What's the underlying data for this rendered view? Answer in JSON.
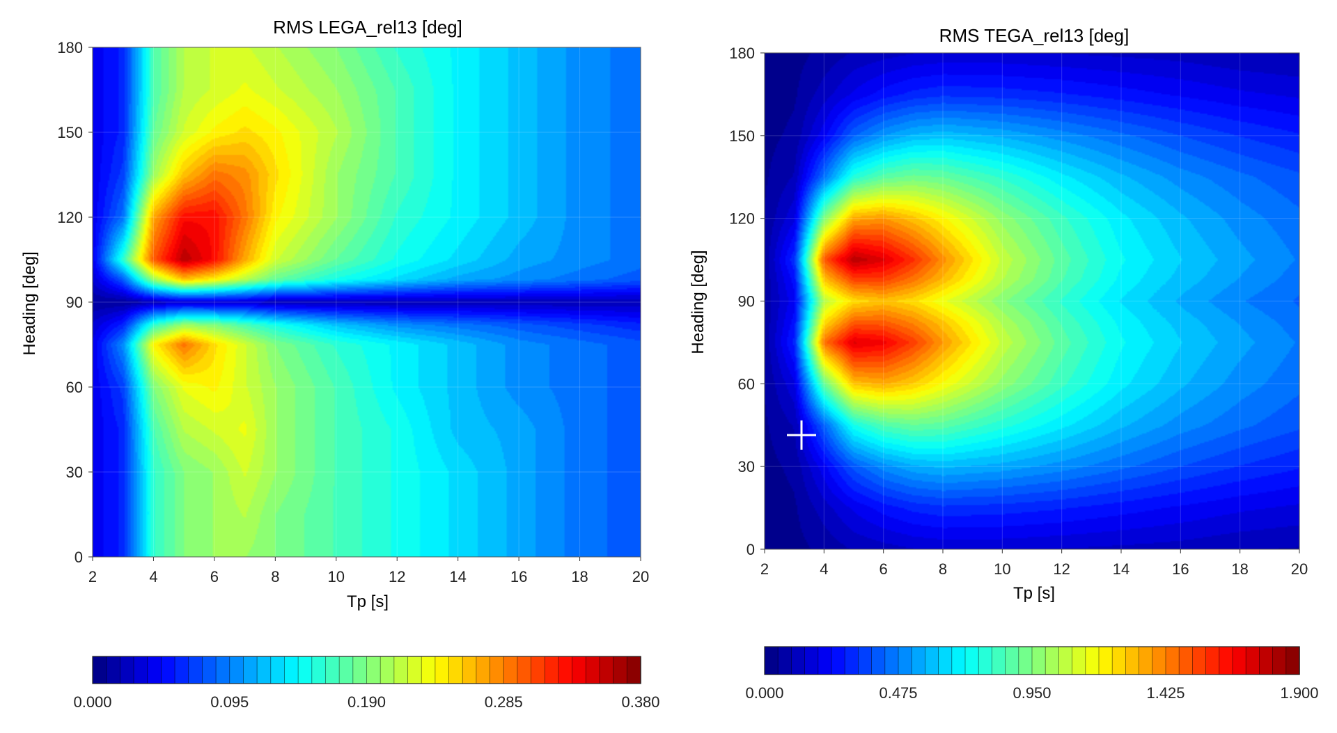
{
  "chart_data": [
    {
      "type": "heatmap",
      "title": "RMS LEGA_rel13 [deg]",
      "xlabel": "Tp [s]",
      "ylabel": "Heading [deg]",
      "xlim": [
        2,
        20
      ],
      "ylim": [
        0,
        180
      ],
      "xticks": [
        2,
        4,
        6,
        8,
        10,
        12,
        14,
        16,
        18,
        20
      ],
      "yticks": [
        0,
        30,
        60,
        90,
        120,
        150,
        180
      ],
      "colorbar": {
        "min": 0.0,
        "max": 0.38,
        "levels": 40,
        "ticks": [
          "0.000",
          "0.095",
          "0.190",
          "0.285",
          "0.380"
        ]
      },
      "colormap": "jet",
      "x": [
        2,
        3,
        4,
        5,
        6,
        7,
        8,
        10,
        12,
        14,
        16,
        18,
        20
      ],
      "y": [
        0,
        15,
        30,
        45,
        60,
        75,
        82,
        90,
        98,
        105,
        120,
        135,
        150,
        165,
        180
      ],
      "z": [
        [
          0.04,
          0.06,
          0.16,
          0.19,
          0.2,
          0.2,
          0.19,
          0.17,
          0.15,
          0.13,
          0.11,
          0.09,
          0.08
        ],
        [
          0.04,
          0.06,
          0.16,
          0.19,
          0.2,
          0.21,
          0.19,
          0.17,
          0.15,
          0.13,
          0.11,
          0.09,
          0.08
        ],
        [
          0.04,
          0.06,
          0.16,
          0.19,
          0.2,
          0.22,
          0.2,
          0.17,
          0.15,
          0.13,
          0.11,
          0.09,
          0.08
        ],
        [
          0.04,
          0.06,
          0.17,
          0.21,
          0.22,
          0.23,
          0.2,
          0.17,
          0.15,
          0.12,
          0.11,
          0.09,
          0.08
        ],
        [
          0.04,
          0.07,
          0.19,
          0.23,
          0.24,
          0.22,
          0.2,
          0.17,
          0.14,
          0.12,
          0.1,
          0.09,
          0.08
        ],
        [
          0.04,
          0.1,
          0.24,
          0.29,
          0.25,
          0.22,
          0.19,
          0.16,
          0.14,
          0.12,
          0.1,
          0.09,
          0.08
        ],
        [
          0.03,
          0.06,
          0.16,
          0.2,
          0.19,
          0.17,
          0.15,
          0.12,
          0.1,
          0.09,
          0.08,
          0.07,
          0.06
        ],
        [
          0.01,
          0.01,
          0.02,
          0.03,
          0.03,
          0.03,
          0.02,
          0.02,
          0.02,
          0.02,
          0.02,
          0.02,
          0.02
        ],
        [
          0.03,
          0.08,
          0.2,
          0.26,
          0.24,
          0.21,
          0.18,
          0.15,
          0.13,
          0.11,
          0.1,
          0.09,
          0.08
        ],
        [
          0.04,
          0.16,
          0.3,
          0.36,
          0.33,
          0.27,
          0.22,
          0.18,
          0.15,
          0.13,
          0.11,
          0.1,
          0.09
        ],
        [
          0.04,
          0.09,
          0.27,
          0.33,
          0.33,
          0.29,
          0.24,
          0.2,
          0.16,
          0.14,
          0.12,
          0.1,
          0.09
        ],
        [
          0.04,
          0.07,
          0.2,
          0.26,
          0.29,
          0.28,
          0.25,
          0.2,
          0.17,
          0.14,
          0.12,
          0.1,
          0.09
        ],
        [
          0.04,
          0.06,
          0.18,
          0.22,
          0.24,
          0.25,
          0.24,
          0.21,
          0.17,
          0.14,
          0.12,
          0.1,
          0.09
        ],
        [
          0.04,
          0.06,
          0.17,
          0.21,
          0.22,
          0.23,
          0.22,
          0.2,
          0.17,
          0.14,
          0.12,
          0.1,
          0.09
        ],
        [
          0.04,
          0.06,
          0.17,
          0.21,
          0.22,
          0.22,
          0.21,
          0.19,
          0.16,
          0.14,
          0.12,
          0.1,
          0.09
        ]
      ]
    },
    {
      "type": "heatmap",
      "title": "RMS TEGA_rel13 [deg]",
      "xlabel": "Tp [s]",
      "ylabel": "Heading [deg]",
      "xlim": [
        2,
        20
      ],
      "ylim": [
        0,
        180
      ],
      "xticks": [
        2,
        4,
        6,
        8,
        10,
        12,
        14,
        16,
        18,
        20
      ],
      "yticks": [
        0,
        30,
        60,
        90,
        120,
        150,
        180
      ],
      "colorbar": {
        "min": 0.0,
        "max": 1.9,
        "levels": 40,
        "ticks": [
          "0.000",
          "0.475",
          "0.950",
          "1.425",
          "1.900"
        ]
      },
      "colormap": "jet",
      "x": [
        2,
        3,
        4,
        5,
        6,
        7,
        8,
        10,
        12,
        14,
        16,
        18,
        20
      ],
      "y": [
        0,
        15,
        30,
        45,
        60,
        75,
        82,
        90,
        98,
        105,
        120,
        135,
        150,
        165,
        180
      ],
      "z": [
        [
          0.02,
          0.03,
          0.06,
          0.1,
          0.12,
          0.14,
          0.15,
          0.15,
          0.14,
          0.13,
          0.12,
          0.1,
          0.09
        ],
        [
          0.02,
          0.04,
          0.12,
          0.2,
          0.26,
          0.3,
          0.32,
          0.31,
          0.29,
          0.26,
          0.23,
          0.2,
          0.18
        ],
        [
          0.03,
          0.06,
          0.22,
          0.4,
          0.5,
          0.56,
          0.58,
          0.55,
          0.5,
          0.44,
          0.38,
          0.33,
          0.29
        ],
        [
          0.04,
          0.1,
          0.42,
          0.75,
          0.86,
          0.9,
          0.88,
          0.78,
          0.68,
          0.58,
          0.5,
          0.44,
          0.39
        ],
        [
          0.05,
          0.18,
          0.9,
          1.3,
          1.34,
          1.28,
          1.18,
          0.98,
          0.82,
          0.68,
          0.58,
          0.5,
          0.44
        ],
        [
          0.06,
          0.3,
          1.45,
          1.72,
          1.68,
          1.55,
          1.38,
          1.08,
          0.88,
          0.72,
          0.62,
          0.54,
          0.47
        ],
        [
          0.06,
          0.26,
          1.25,
          1.5,
          1.5,
          1.42,
          1.3,
          1.04,
          0.85,
          0.7,
          0.6,
          0.52,
          0.45
        ],
        [
          0.06,
          0.22,
          1.05,
          1.25,
          1.3,
          1.25,
          1.15,
          0.96,
          0.8,
          0.66,
          0.56,
          0.48,
          0.42
        ],
        [
          0.06,
          0.26,
          1.3,
          1.55,
          1.55,
          1.45,
          1.32,
          1.05,
          0.86,
          0.7,
          0.6,
          0.52,
          0.45
        ],
        [
          0.06,
          0.32,
          1.5,
          1.8,
          1.72,
          1.58,
          1.4,
          1.08,
          0.88,
          0.72,
          0.62,
          0.54,
          0.47
        ],
        [
          0.05,
          0.18,
          0.95,
          1.35,
          1.38,
          1.3,
          1.2,
          0.98,
          0.82,
          0.68,
          0.58,
          0.5,
          0.44
        ],
        [
          0.04,
          0.1,
          0.45,
          0.78,
          0.88,
          0.92,
          0.9,
          0.8,
          0.68,
          0.58,
          0.5,
          0.44,
          0.39
        ],
        [
          0.03,
          0.06,
          0.22,
          0.42,
          0.52,
          0.58,
          0.6,
          0.56,
          0.5,
          0.44,
          0.38,
          0.33,
          0.29
        ],
        [
          0.02,
          0.04,
          0.12,
          0.2,
          0.26,
          0.3,
          0.32,
          0.31,
          0.29,
          0.26,
          0.23,
          0.2,
          0.18
        ],
        [
          0.02,
          0.03,
          0.06,
          0.1,
          0.12,
          0.14,
          0.15,
          0.15,
          0.14,
          0.13,
          0.12,
          0.1,
          0.09
        ]
      ]
    }
  ]
}
